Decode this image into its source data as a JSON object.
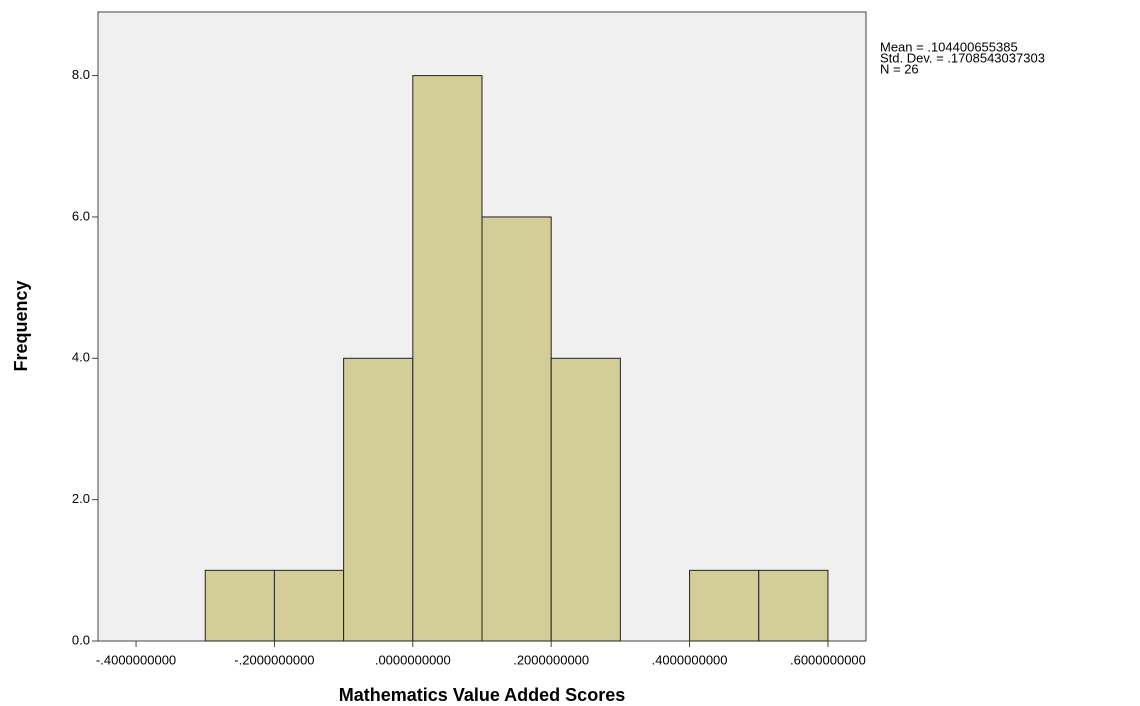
{
  "chart_data": {
    "type": "histogram",
    "xlabel": "Mathematics Value Added Scores",
    "ylabel": "Frequency",
    "annotations": [
      "Mean = .104400655385",
      "Std. Dev. = .1708543037303",
      "N = 26"
    ],
    "bins": [
      -0.3,
      -0.2,
      -0.1,
      0,
      0.1,
      0.2,
      0.3,
      0.4,
      0.5,
      0.6
    ],
    "counts": [
      1,
      1,
      4,
      8,
      6,
      4,
      0,
      1,
      1
    ],
    "color": "#d3ce97",
    "xlim": [
      -0.455,
      0.655
    ],
    "ylim": [
      0,
      8.9
    ],
    "xticks": [
      {
        "value": -0.4,
        "label": "-.4000000000"
      },
      {
        "value": -0.2,
        "label": "-.2000000000"
      },
      {
        "value": 0,
        "label": ".0000000000"
      },
      {
        "value": 0.2,
        "label": ".2000000000"
      },
      {
        "value": 0.4,
        "label": ".4000000000"
      },
      {
        "value": 0.6,
        "label": ".6000000000"
      }
    ],
    "yticks": [
      {
        "value": 0,
        "label": "0.0"
      },
      {
        "value": 2,
        "label": "2.0"
      },
      {
        "value": 4,
        "label": "4.0"
      },
      {
        "value": 6,
        "label": "6.0"
      },
      {
        "value": 8,
        "label": "8.0"
      }
    ]
  }
}
